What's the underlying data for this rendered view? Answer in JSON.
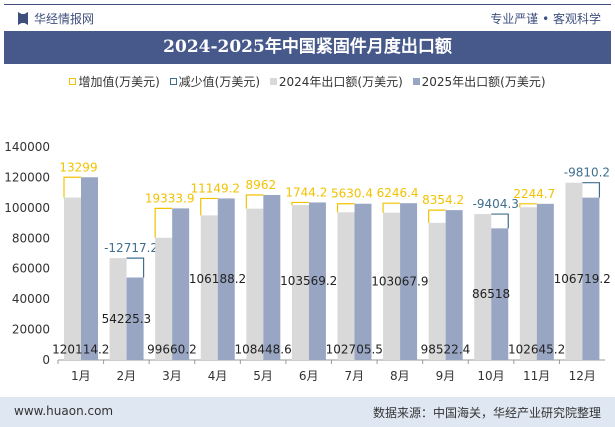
{
  "header": {
    "brand": "华经情报网",
    "slogan": "专业严谨 • 客观科学"
  },
  "footer": {
    "website": "www.huaon.com",
    "source": "数据来源：中国海关，华经产业研究院整理"
  },
  "chart_data": {
    "type": "bar",
    "title": "2024-2025年中国紧固件月度出口额",
    "categories": [
      "1月",
      "2月",
      "3月",
      "4月",
      "5月",
      "6月",
      "7月",
      "8月",
      "9月",
      "10月",
      "11月",
      "12月"
    ],
    "series": [
      {
        "name": "2024年出口额(万美元)",
        "color": "#d9d9d9",
        "values": [
          106815.2,
          66942.5,
          80326.3,
          95039,
          99486.6,
          101825,
          97075.1,
          96821.5,
          90168.2,
          95922.3,
          100400.5,
          116529.4
        ]
      },
      {
        "name": "2025年出口额(万美元)",
        "color": "#98a6c4",
        "values": [
          120114.2,
          54225.3,
          99660.2,
          106188.2,
          108448.6,
          103569.2,
          102705.5,
          103067.9,
          98522.4,
          86518,
          102645.2,
          106719.2
        ]
      }
    ],
    "differences": [
      13299,
      -12717.2,
      19333.9,
      11149.2,
      8962,
      1744.2,
      5630.4,
      6246.4,
      8354.2,
      -9404.3,
      2244.7,
      -9810.2
    ],
    "legend": [
      {
        "name": "增加值(万美元)",
        "color": "#f2c200",
        "style": "outline"
      },
      {
        "name": "减少值(万美元)",
        "color": "#3f6f8f",
        "style": "outline"
      },
      {
        "name": "2024年出口额(万美元)",
        "color": "#d9d9d9",
        "style": "fill"
      },
      {
        "name": "2025年出口额(万美元)",
        "color": "#98a6c4",
        "style": "fill"
      }
    ],
    "legend_position": "top",
    "ylim": [
      0,
      140000
    ],
    "yticks": [
      "0",
      "20000",
      "40000",
      "60000",
      "80000",
      "100000",
      "120000",
      "140000"
    ],
    "grid": false
  }
}
